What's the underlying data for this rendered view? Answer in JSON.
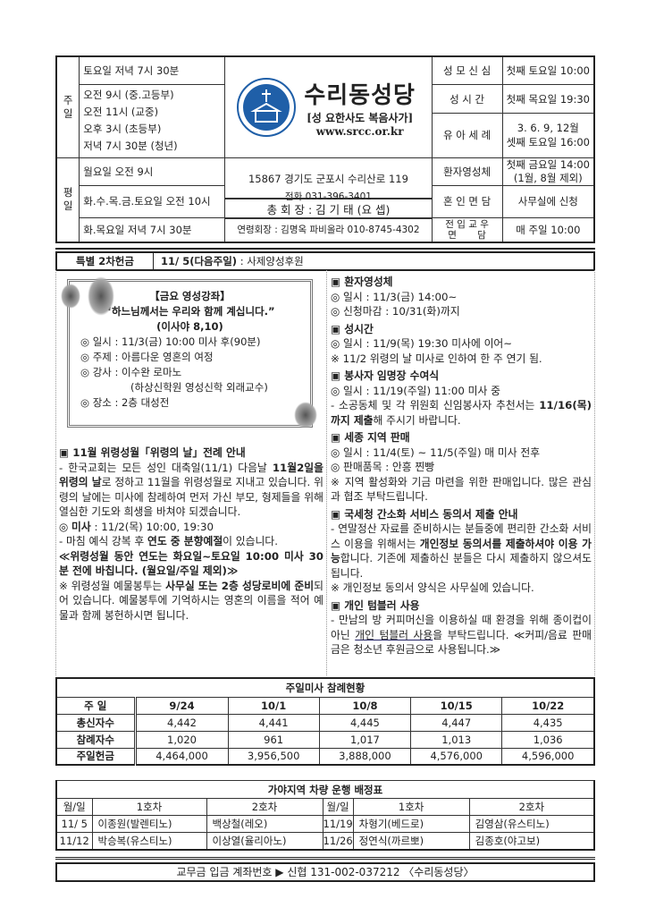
{
  "header": {
    "sunday_label": "주\n일",
    "weekday_label": "평\n일",
    "sunday": [
      "토요일 저녁 7시 30분",
      "오전  9시 (중.고등부)",
      "오전 11시 (교중)",
      "오후  3시 (초등부)",
      "저녁  7시 30분 (청년)"
    ],
    "weekday": [
      "월요일 오전 9시",
      "화.수.목.금.토요일 오전 10시",
      "화.목요일 저녁 7시 30분"
    ],
    "church_name": "수리동성당",
    "patron": "[성 요한사도 복음사가]",
    "website": "www.srcc.or.kr",
    "address": "15867 경기도 군포시 수리산로 119",
    "phone": "전화 031-396-3401",
    "president": "총 회 장 : 김 기 태 (요 셉)",
    "funeral_head": "연령회장 : 김명옥 파비올라 010-8745-4302",
    "right": [
      {
        "label": "성 모 신 심",
        "value": "첫째 토요일 10:00"
      },
      {
        "label": "성   시   간",
        "value": "첫째 목요일 19:30"
      },
      {
        "label": "유 아 세 례",
        "value": "3. 6. 9, 12월\n셋째 토요일 16:00"
      },
      {
        "label": "환자영성체",
        "value": "첫째 금요일 14:00\n(1월, 8월 제외)"
      },
      {
        "label": "혼 인 면 담",
        "value": "사무실에 신청"
      },
      {
        "label": "전 입 교 우\n면       담",
        "value": "매 주일 10:00"
      }
    ]
  },
  "special": {
    "label": "특별 2차헌금",
    "date": "11/ 5(다음주일)",
    "text": " : 사제양성후원"
  },
  "lecture": {
    "title": "【금요 영성강좌】",
    "quote": "“하느님께서는 우리와 함께 계십니다.”",
    "ref": "(이사야 8,10)",
    "items": [
      "◎ 일시 : 11/3(금) 10:00 미사 후(90분)",
      "◎ 주제 : 아름다운 영혼의 여정",
      "◎ 강사 : 이수완 로마노",
      "(하상신학원 영성신학 외래교수)",
      "◎ 장소 : 2층 대성전"
    ]
  },
  "left": [
    [
      {
        "t": "▣ 11월 위령성월「위령의 날」전례 안내",
        "b": 1
      }
    ],
    [
      {
        "t": "- 한국교회는 모든 성인 대축일(11/1) 다음날 "
      },
      {
        "t": "11월2일을 위령의 날",
        "b": 1
      },
      {
        "t": "로 정하고 11월을 위령성월로 지내고 있습니다. 위령의 날에는 미사에 참례하여 먼저 가신 부모, 형제들을 위해 열심한 기도와 희생을 바쳐야 되겠습니다."
      }
    ],
    [
      {
        "t": "◎ "
      },
      {
        "t": "미사",
        "b": 1
      },
      {
        "t": " : 11/2(목) 10:00, 19:30"
      }
    ],
    [
      {
        "t": "  - 마침 예식 강복 후 "
      },
      {
        "t": "연도 중 분향예절",
        "b": 1
      },
      {
        "t": "이 있습니다."
      }
    ],
    [
      {
        "t": "≪위령성월 동안 연도는 화요일~토요일 10:00 미사 30분 전에 바칩니다. (월요일/주일 제외)≫",
        "b": 1
      }
    ],
    [
      {
        "t": "※ 위령성월 예물봉투는 "
      },
      {
        "t": "사무실 또는 2층 성당로비에 준비",
        "b": 1
      },
      {
        "t": "되어 있습니다. 예물봉투에 기억하시는 영혼의 이름을 적어 예물과 함께 봉헌하시면 됩니다."
      }
    ]
  ],
  "right": [
    [
      {
        "t": "▣ 환자영성체",
        "b": 1
      }
    ],
    [
      {
        "t": "◎ 일시 : 11/3(금) 14:00~"
      }
    ],
    [
      {
        "t": "◎ 신청마감 : 10/31(화)까지"
      }
    ],
    [
      {
        "t": "▣ 성시간",
        "b": 1
      }
    ],
    [
      {
        "t": "◎ 일시 : 11/9(목) 19:30 미사에 이어~"
      }
    ],
    [
      {
        "t": "※ 11/2 위령의 날 미사로 인하여 한 주 연기 됨."
      }
    ],
    [
      {
        "t": "▣ 봉사자 임명장 수여식",
        "b": 1
      }
    ],
    [
      {
        "t": "◎ 일시 : 11/19(주일) 11:00 미사 중"
      }
    ],
    [
      {
        "t": "- 소공동체 및 각 위원회 신임봉사자 추천서는 "
      },
      {
        "t": "11/16(목)까지 제출",
        "b": 1
      },
      {
        "t": "해 주시기 바랍니다."
      }
    ],
    [
      {
        "t": "▣ 세종 지역 판매",
        "b": 1
      }
    ],
    [
      {
        "t": "◎ 일시 : 11/4(토) ~ 11/5(주일) 매 미사 전후"
      }
    ],
    [
      {
        "t": "◎ 판매품목 : 안흥 찐빵"
      }
    ],
    [
      {
        "t": "※ 지역 활성화와 기금 마련을 위한 판매입니다. 많은 관심과 협조 부탁드립니다."
      }
    ],
    [
      {
        "t": "▣ 국세청 간소화 서비스 동의서 제출 안내",
        "b": 1
      }
    ],
    [
      {
        "t": "- 연말정산 자료를 준비하시는 분들중에 편리한 간소화 서비스 이용을 위해서는 "
      },
      {
        "t": "개인정보 동의서를 제출하셔야 이용 가능",
        "b": 1
      },
      {
        "t": "합니다. 기존에 제출하신 분들은 다시 제출하지 않으셔도 됩니다."
      }
    ],
    [
      {
        "t": "※ 개인정보 동의서 양식은 사무실에 있습니다."
      }
    ],
    [
      {
        "t": "▣ 개인 텀블러 사용",
        "b": 1
      }
    ],
    [
      {
        "t": "- 만남의 방 커피머신을 이용하실 때 환경을 위해 종이컵이 아닌 "
      },
      {
        "t": "개인 텀블러 사용",
        "b": 1,
        "u": 1
      },
      {
        "t": "을 부탁드립니다. ≪커피/음료 판매금은 청소년 후원금으로 사용됩니다.≫"
      }
    ]
  ],
  "attendance": {
    "title": "주일미사 참례현황",
    "header": [
      "주 일",
      "9/24",
      "10/1",
      "10/8",
      "10/15",
      "10/22"
    ],
    "rows": [
      [
        "총신자수",
        "4,442",
        "4,441",
        "4,445",
        "4,447",
        "4,435"
      ],
      [
        "참례자수",
        "1,020",
        "961",
        "1,017",
        "1,013",
        "1,036"
      ],
      [
        "주일헌금",
        "4,464,000",
        "3,956,500",
        "3,888,000",
        "4,576,000",
        "4,596,000"
      ]
    ]
  },
  "vehicle": {
    "title": "가야지역 차량 운행 배정표",
    "header": [
      "월/일",
      "1호차",
      "2호차",
      "월/일",
      "1호차",
      "2호차"
    ],
    "rows": [
      [
        "11/ 5",
        "이종원(발렌티노)",
        "백상철(레오)",
        "11/19",
        "차형기(베드로)",
        "김영삼(유스티노)"
      ],
      [
        "11/12",
        "박승복(유스티노)",
        "이상열(율리아노)",
        "11/26",
        "정연식(까르뽀)",
        "김종호(야고보)"
      ]
    ]
  },
  "footer": "교무금 입금 계좌번호 ▶ 신협 131-002-037212 〈수리동성당〉",
  "colors": {
    "logo_blue": "#1f5fa8",
    "text": "#222222"
  }
}
